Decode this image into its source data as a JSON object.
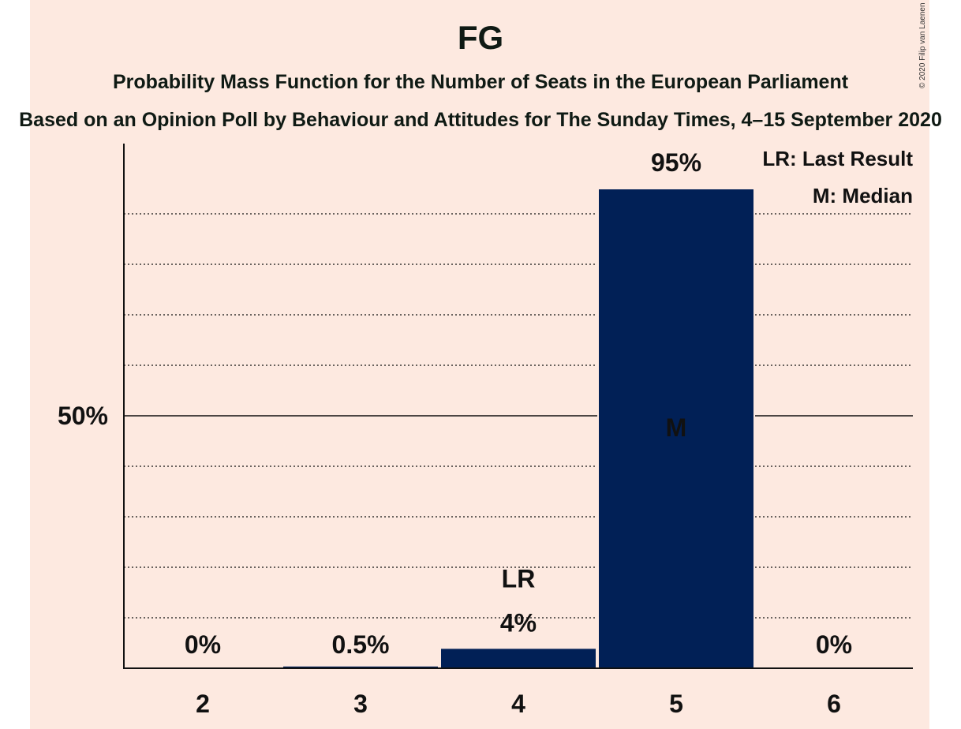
{
  "copyright": "© 2020 Filip van Laenen",
  "chart_data": {
    "type": "bar",
    "title": "FG",
    "subtitle": "Probability Mass Function for the Number of Seats in the European Parliament",
    "source": "Based on an Opinion Poll by Behaviour and Attitudes for The Sunday Times, 4–15 September 2020",
    "categories": [
      "2",
      "3",
      "4",
      "5",
      "6"
    ],
    "values": [
      0,
      0.5,
      4,
      95,
      0
    ],
    "value_labels": [
      "0%",
      "0.5%",
      "4%",
      "95%",
      "0%"
    ],
    "ylim": [
      0,
      104
    ],
    "y_tick_values": [
      50
    ],
    "y_tick_labels": [
      "50%"
    ],
    "grid_step": 10,
    "last_result_category": "4",
    "last_result_marker": "LR",
    "median_category": "5",
    "median_marker": "M",
    "legend": [
      "LR: Last Result",
      "M: Median"
    ],
    "legend_position": "top-right",
    "colors": {
      "bar": "#012056",
      "background": "#fde9e0",
      "median_text": "#fde9e0",
      "text": "#111111"
    }
  }
}
